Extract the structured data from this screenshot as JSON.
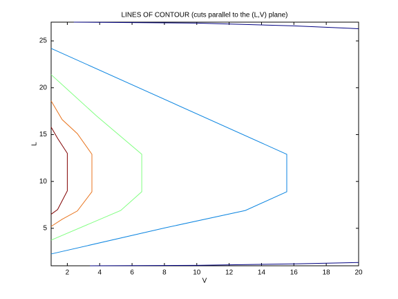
{
  "chart_data": {
    "type": "line",
    "title": "LINES OF CONTOUR (cuts parallel to the (L,V) plane)",
    "x_label": "V",
    "y_label": "L",
    "xlim": [
      1,
      20
    ],
    "ylim": [
      1,
      27
    ],
    "xticks": [
      2,
      4,
      6,
      8,
      10,
      12,
      14,
      16,
      18,
      20
    ],
    "yticks": [
      5,
      10,
      15,
      20,
      25
    ],
    "series": [
      {
        "color": "#800000",
        "x": [
          1,
          1.4,
          2,
          2,
          1.4,
          1
        ],
        "y": [
          15.8,
          14.6,
          13,
          9,
          7,
          6.5
        ]
      },
      {
        "color": "#e8731c",
        "x": [
          1,
          1.68,
          2.62,
          3.52,
          3.52,
          2.62,
          1.68,
          1
        ],
        "y": [
          18.6,
          16.6,
          15.1,
          12.9,
          8.9,
          6.85,
          5.96,
          5.2
        ]
      },
      {
        "color": "#80ff80",
        "x": [
          1,
          3.8,
          6.6,
          6.6,
          5.3,
          1
        ],
        "y": [
          21.4,
          17,
          12.9,
          8.9,
          6.9,
          3.74
        ]
      },
      {
        "color": "#0a84e0",
        "x": [
          1,
          15.56,
          15.56,
          13,
          8.1,
          1
        ],
        "y": [
          24.2,
          12.9,
          8.9,
          6.9,
          5.07,
          2.26
        ]
      },
      {
        "color": "#000080",
        "x": [
          2.4,
          10,
          16,
          20
        ],
        "y": [
          27,
          26.9,
          26.6,
          26.3
        ]
      },
      {
        "color": "#000080",
        "x": [
          3.4,
          10,
          16,
          20
        ],
        "y": [
          1,
          1.05,
          1.2,
          1.35
        ]
      }
    ]
  }
}
